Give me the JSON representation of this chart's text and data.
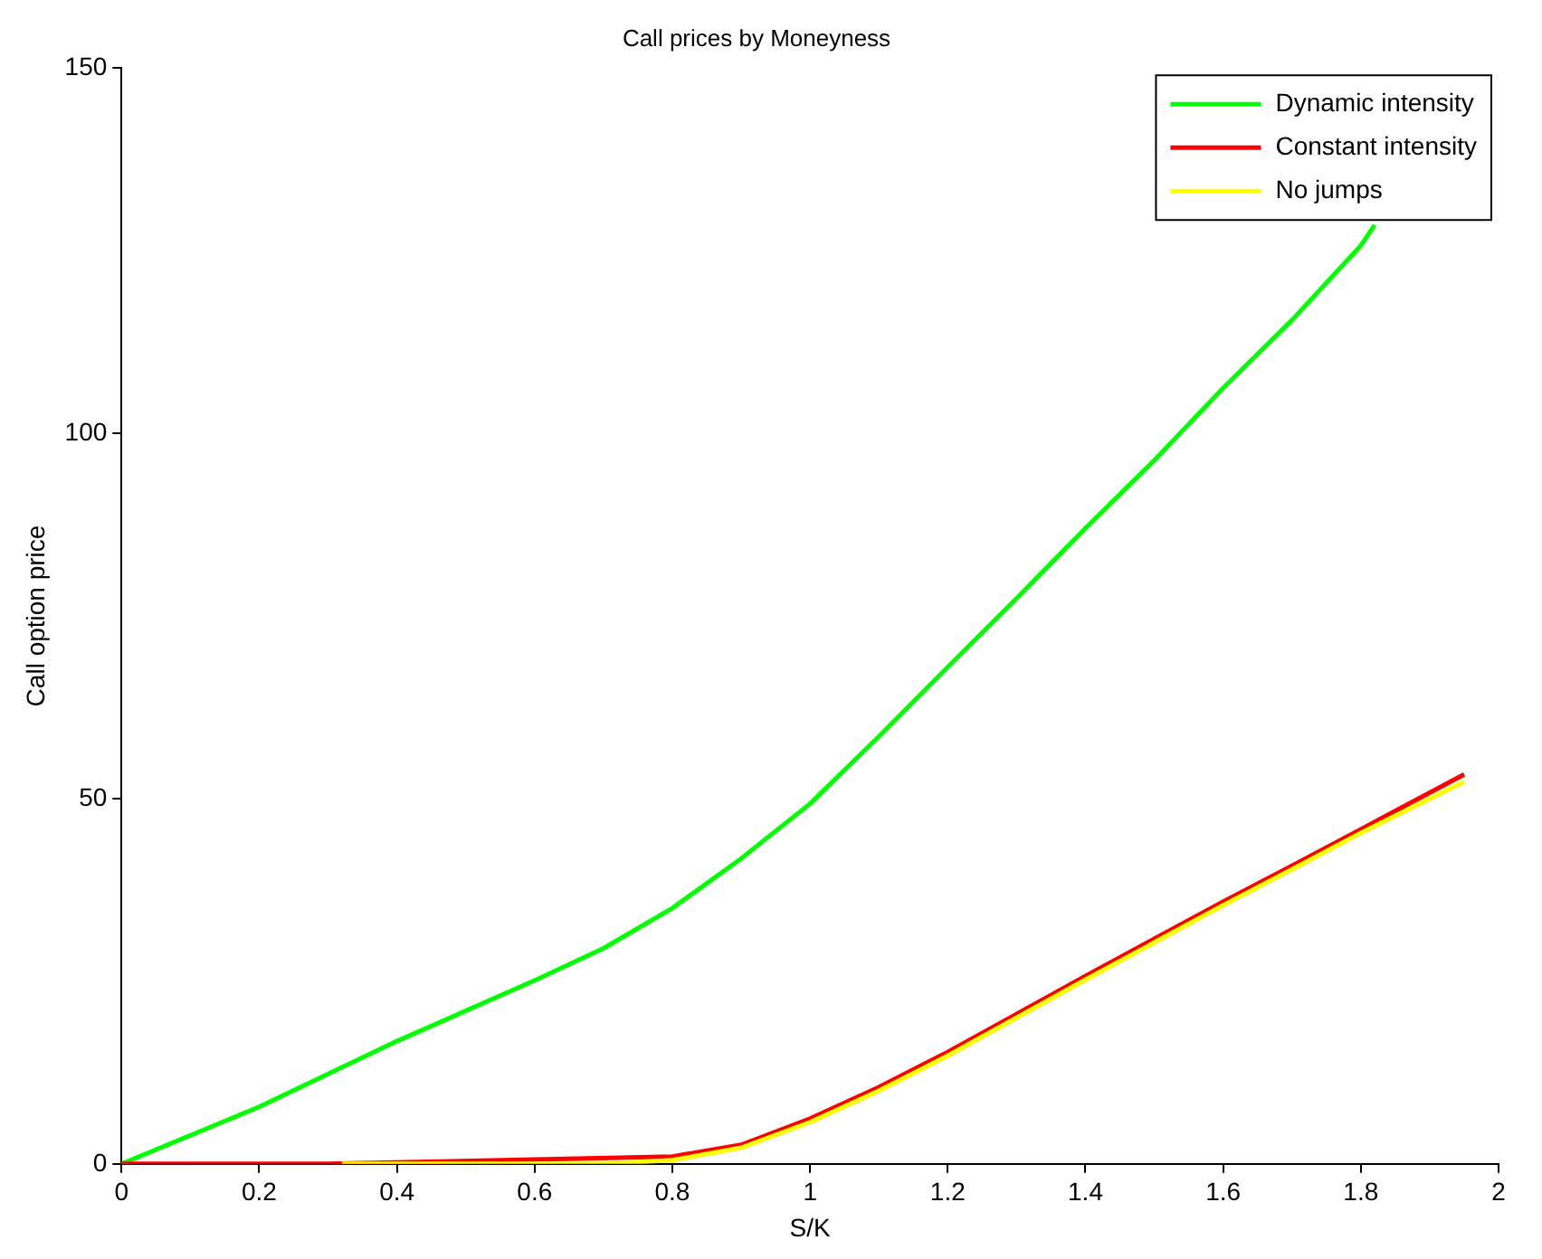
{
  "chart_data": {
    "type": "line",
    "title": "Call prices by Moneyness",
    "xlabel": "S/K",
    "ylabel": "Call option price",
    "xlim": [
      0,
      2
    ],
    "xticks": [
      0,
      0.2,
      0.4,
      0.6,
      0.8,
      1,
      1.2,
      1.4,
      1.6,
      1.8,
      2
    ],
    "ylim": [
      0,
      150
    ],
    "yticks": [
      0,
      50,
      100,
      150
    ],
    "grid": false,
    "legend": "top right",
    "marker": "none",
    "line_style": "solid",
    "series": [
      {
        "name": "Dynamic intensity",
        "color": "#00ff00",
        "x": [
          0,
          0.2,
          0.4,
          0.6,
          0.7,
          0.8,
          0.9,
          1,
          1.1,
          1.2,
          1.3,
          1.4,
          1.5,
          1.6,
          1.7,
          1.8,
          1.82
        ],
        "values": [
          0,
          7.8,
          16.8,
          25.1,
          29.5,
          35,
          41.8,
          49.3,
          58.5,
          68,
          77.4,
          87,
          96.3,
          106.2,
          115.5,
          125.7,
          128.5
        ]
      },
      {
        "name": "Constant intensity",
        "color": "#ff0000",
        "x": [
          0,
          0.1,
          0.2,
          0.3,
          0.8,
          0.9,
          1,
          1.1,
          1.2,
          1.3,
          1.4,
          1.5,
          1.6,
          1.7,
          1.8,
          1.95
        ],
        "values": [
          0,
          0,
          0,
          0,
          1,
          2.6,
          6.2,
          10.5,
          15.3,
          20.5,
          25.7,
          30.8,
          35.9,
          40.8,
          45.8,
          53.3
        ]
      },
      {
        "name": "No jumps",
        "color": "#ffff00",
        "x": [
          0.32,
          0.4,
          0.5,
          0.6,
          0.7,
          0.8,
          0.9,
          1,
          1.1,
          1.2,
          1.3,
          1.4,
          1.5,
          1.6,
          1.7,
          1.8,
          1.95
        ],
        "values": [
          0,
          0,
          0,
          0,
          0,
          0.5,
          2.2,
          5.7,
          10,
          14.8,
          20,
          25.2,
          30.3,
          35.4,
          40.3,
          45.3,
          52.3
        ]
      }
    ]
  }
}
